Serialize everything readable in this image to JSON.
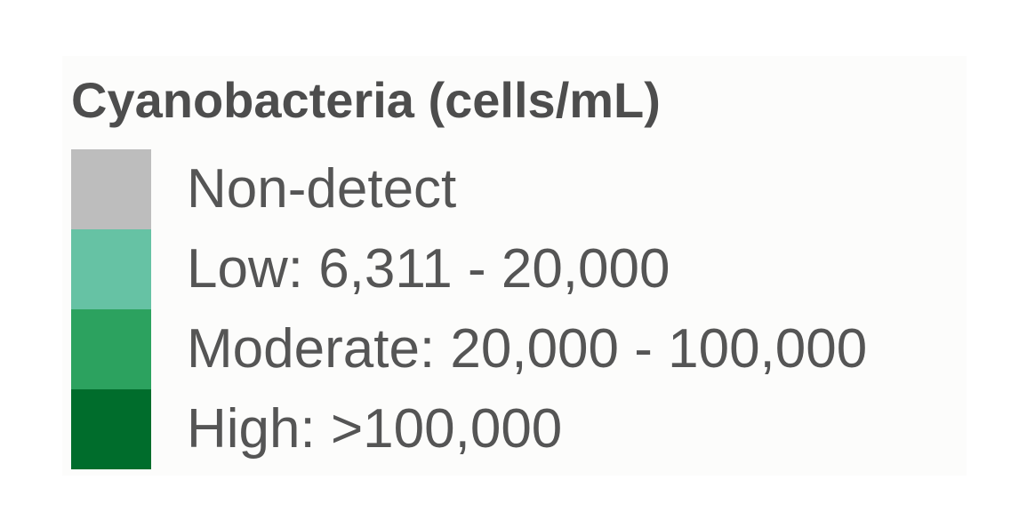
{
  "legend": {
    "title": "Cyanobacteria (cells/mL)",
    "items": [
      {
        "label": "Non-detect",
        "color": "#bdbdbd"
      },
      {
        "label": "Low: 6,311 - 20,000",
        "color": "#66c2a4"
      },
      {
        "label": "Moderate: 20,000 - 100,000",
        "color": "#2ca25f"
      },
      {
        "label": "High: >100,000",
        "color": "#006d2c"
      }
    ]
  }
}
